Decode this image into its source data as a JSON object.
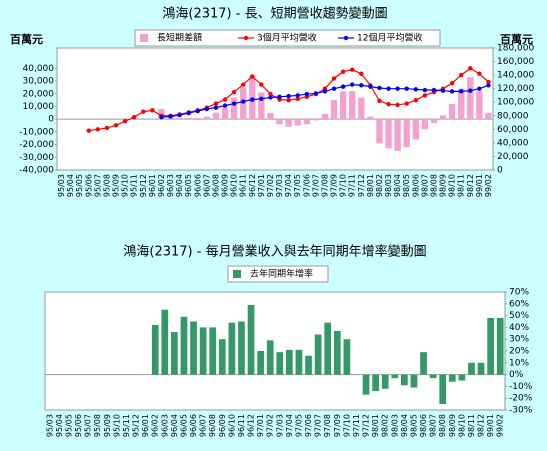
{
  "chart_data": [
    {
      "type": "combo",
      "title": "鴻海(2317) - 長、短期營收趨勢變動圖",
      "y_label": "百萬元",
      "y2_label": "百萬元",
      "categories": [
        "95/03",
        "95/04",
        "95/05",
        "95/06",
        "95/07",
        "95/08",
        "95/09",
        "95/10",
        "95/11",
        "95/12",
        "96/01",
        "96/02",
        "96/03",
        "96/04",
        "96/05",
        "96/06",
        "96/07",
        "96/08",
        "96/09",
        "96/10",
        "96/11",
        "96/12",
        "97/01",
        "97/02",
        "97/03",
        "97/04",
        "97/05",
        "97/06",
        "97/07",
        "97/08",
        "97/09",
        "97/10",
        "97/11",
        "97/12",
        "98/01",
        "98/02",
        "98/03",
        "98/04",
        "98/05",
        "98/06",
        "98/07",
        "98/08",
        "98/09",
        "98/10",
        "98/11",
        "98/12",
        "99/01",
        "99/02"
      ],
      "ylim": [
        -40000,
        56000
      ],
      "yticks": [
        {
          "value": -40000,
          "label": "-40,000"
        },
        {
          "value": -30000,
          "label": "-30,000"
        },
        {
          "value": -20000,
          "label": "-20,000"
        },
        {
          "value": -10000,
          "label": "-10,000"
        },
        0,
        {
          "value": 10000,
          "label": "10,000"
        },
        {
          "value": 20000,
          "label": "20,000"
        },
        {
          "value": 30000,
          "label": "30,000"
        },
        {
          "value": 40000,
          "label": "40,000"
        }
      ],
      "ytick_color": "#ff0000",
      "y2lim": [
        0,
        180000
      ],
      "y2ticks": [
        0,
        {
          "value": 20000,
          "label": "20,000"
        },
        {
          "value": 40000,
          "label": "40,000"
        },
        {
          "value": 60000,
          "label": "60,000"
        },
        {
          "value": 80000,
          "label": "80,000"
        },
        {
          "value": 100000,
          "label": "100,000"
        },
        {
          "value": 120000,
          "label": "120,000"
        },
        {
          "value": 140000,
          "label": "140,000"
        },
        {
          "value": 160000,
          "label": "160,000"
        },
        {
          "value": 180000,
          "label": "180,000"
        }
      ],
      "series": [
        {
          "name": "長短期差額",
          "type": "bar",
          "color": "#f4a0d0",
          "values": [
            null,
            null,
            null,
            null,
            null,
            null,
            null,
            null,
            null,
            null,
            null,
            8000,
            3000,
            1000,
            1000,
            1000,
            2000,
            5000,
            9000,
            17000,
            25000,
            34000,
            21000,
            5000,
            -4000,
            -6000,
            -5000,
            -4000,
            -1000,
            4000,
            15000,
            22000,
            22000,
            17000,
            2000,
            -19000,
            -23000,
            -25000,
            -22000,
            -16000,
            -8000,
            -3000,
            3000,
            12000,
            24000,
            33000,
            22000,
            5000
          ]
        },
        {
          "name": "3個月平均營收",
          "type": "line",
          "axis": "y2",
          "color": "#ff0000",
          "values": [
            null,
            null,
            null,
            58000,
            60000,
            62000,
            66000,
            72000,
            78000,
            86000,
            88000,
            80000,
            80000,
            82000,
            85000,
            88000,
            92000,
            98000,
            104000,
            115000,
            126000,
            138000,
            126000,
            112000,
            104000,
            103000,
            105000,
            108000,
            112000,
            120000,
            135000,
            145000,
            148000,
            142000,
            125000,
            102000,
            97000,
            96000,
            98000,
            103000,
            110000,
            115000,
            120000,
            128000,
            140000,
            150000,
            142000,
            130000
          ]
        },
        {
          "name": "12個月平均營收",
          "type": "line",
          "axis": "y2",
          "color": "#0000ff",
          "values": [
            null,
            null,
            null,
            null,
            null,
            null,
            null,
            null,
            null,
            null,
            null,
            78000,
            79000,
            81000,
            84000,
            87000,
            90000,
            92000,
            95000,
            98000,
            101000,
            104000,
            105000,
            107000,
            108000,
            109000,
            110000,
            112000,
            113000,
            116000,
            120000,
            123000,
            126000,
            125000,
            123000,
            121000,
            120000,
            120000,
            120000,
            119000,
            118000,
            118000,
            117000,
            116000,
            116000,
            117000,
            120000,
            125000
          ]
        }
      ]
    },
    {
      "type": "bar",
      "title": "鴻海(2317) - 每月營業收入與去年同期年增率變動圖",
      "categories": [
        "95/03",
        "95/04",
        "95/05",
        "95/06",
        "95/07",
        "95/08",
        "95/09",
        "95/10",
        "95/11",
        "95/12",
        "96/01",
        "96/02",
        "96/03",
        "96/04",
        "96/05",
        "96/06",
        "96/07",
        "96/08",
        "96/09",
        "96/10",
        "96/11",
        "96/12",
        "97/01",
        "97/02",
        "97/03",
        "97/04",
        "97/05",
        "97/06",
        "97/07",
        "97/08",
        "97/09",
        "97/10",
        "97/11",
        "97/12",
        "98/01",
        "98/02",
        "98/03",
        "98/04",
        "98/05",
        "98/06",
        "98/07",
        "98/08",
        "98/09",
        "98/10",
        "98/11",
        "98/12",
        "99/01",
        "99/02"
      ],
      "y_axis_side": "right",
      "ylim": [
        -30,
        70
      ],
      "yticks": [
        {
          "value": -30,
          "label": "-30%"
        },
        {
          "value": -20,
          "label": "-20%"
        },
        {
          "value": -10,
          "label": "-10%"
        },
        {
          "value": 0,
          "label": "0%"
        },
        {
          "value": 10,
          "label": "10%"
        },
        {
          "value": 20,
          "label": "20%"
        },
        {
          "value": 30,
          "label": "30%"
        },
        {
          "value": 40,
          "label": "40%"
        },
        {
          "value": 50,
          "label": "50%"
        },
        {
          "value": 60,
          "label": "60%"
        },
        {
          "value": 70,
          "label": "70%"
        }
      ],
      "series": [
        {
          "name": "去年同期年增率",
          "type": "bar",
          "color": "#339966",
          "values": [
            null,
            null,
            null,
            null,
            null,
            null,
            null,
            null,
            null,
            null,
            null,
            42,
            55,
            36,
            49,
            45,
            40,
            40,
            30,
            44,
            45,
            59,
            20,
            29,
            19,
            21,
            21,
            16,
            34,
            44,
            37,
            30,
            0,
            -17,
            -14,
            -12,
            -3,
            -9,
            -11,
            19,
            -3,
            -25,
            -6,
            -5,
            10,
            10,
            48,
            48
          ]
        }
      ]
    }
  ]
}
